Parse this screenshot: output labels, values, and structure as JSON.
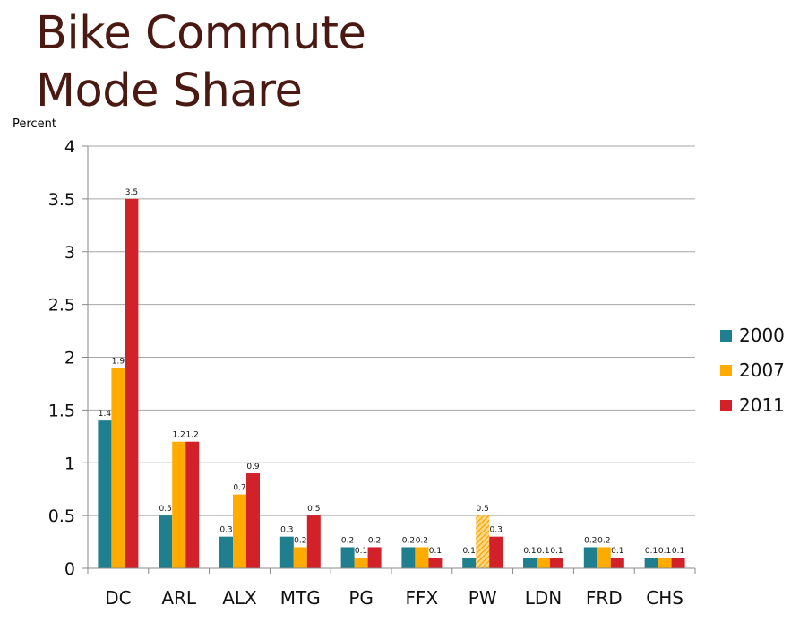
{
  "title_line1": "Bike Commute",
  "title_line2": "Mode Share",
  "chart_data": {
    "type": "bar",
    "title": "Bike Commute Mode Share",
    "ylabel": "Percent",
    "xlabel": "",
    "ylim": [
      0,
      4
    ],
    "yticks": [
      "0",
      "0.5",
      "1",
      "1.5",
      "2",
      "2.5",
      "3",
      "3.5",
      "4"
    ],
    "grid": true,
    "legend_position": "right",
    "categories": [
      "DC",
      "ARL",
      "ALX",
      "MTG",
      "PG",
      "FFX",
      "PW",
      "LDN",
      "FRD",
      "CHS"
    ],
    "series": [
      {
        "name": "2000",
        "color": "#1f7f8f",
        "values": [
          1.4,
          0.5,
          0.3,
          0.3,
          0.2,
          0.2,
          0.1,
          0.1,
          0.2,
          0.1
        ],
        "labels": [
          "1.4",
          "0.5",
          "0.3",
          "0.3",
          "0.2",
          "0.2",
          "0.1",
          "0.1",
          "0.2",
          "0.1"
        ]
      },
      {
        "name": "2007",
        "color": "#ffab00",
        "values": [
          1.9,
          1.2,
          0.7,
          0.2,
          0.1,
          0.2,
          0.5,
          0.1,
          0.2,
          0.1
        ],
        "labels": [
          "1.9",
          "1.2",
          "0.7",
          "0.2",
          "0.1",
          "0.2",
          "0.5",
          "0.1",
          "0.2",
          "0.1"
        ],
        "hatched_categories": [
          "PW"
        ]
      },
      {
        "name": "2011",
        "color": "#d22128",
        "values": [
          3.5,
          1.2,
          0.9,
          0.5,
          0.2,
          0.1,
          0.3,
          0.1,
          0.1,
          0.1
        ],
        "labels": [
          "3.5",
          "1.2",
          "0.9",
          "0.5",
          "0.2",
          "0.1",
          "0.3",
          "0.1",
          "0.1",
          "0.1"
        ]
      }
    ]
  }
}
